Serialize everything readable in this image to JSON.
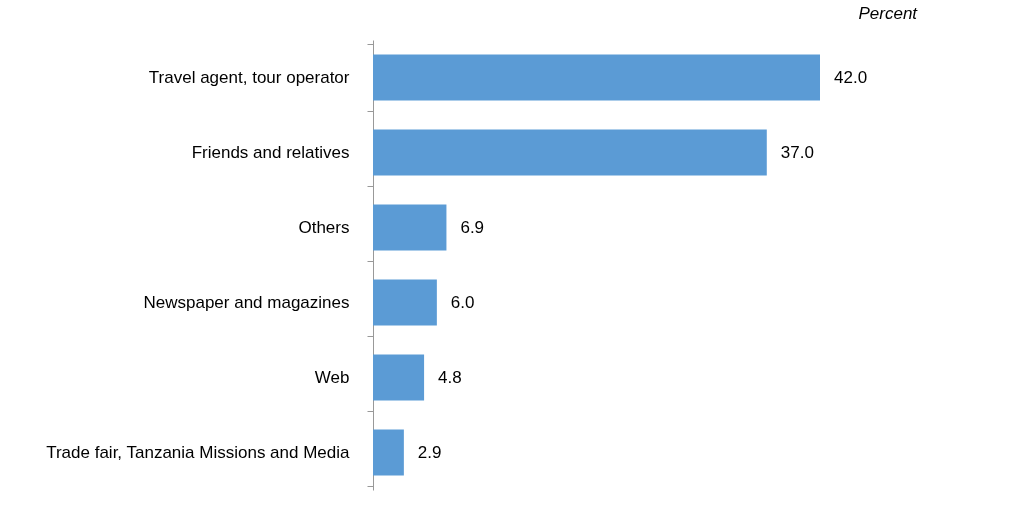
{
  "chart_data": {
    "type": "bar",
    "orientation": "horizontal",
    "subtitle": "Percent",
    "categories": [
      "Travel agent, tour operator",
      "Friends and relatives",
      "Others",
      "Newspaper and magazines",
      "Web",
      "Trade fair, Tanzania Missions and Media"
    ],
    "values": [
      42.0,
      37.0,
      6.9,
      6.0,
      4.8,
      2.9
    ],
    "value_labels": [
      "42.0",
      "37.0",
      "6.9",
      "6.0",
      "4.8",
      "2.9"
    ],
    "color": "#5b9bd5",
    "grid": false
  }
}
